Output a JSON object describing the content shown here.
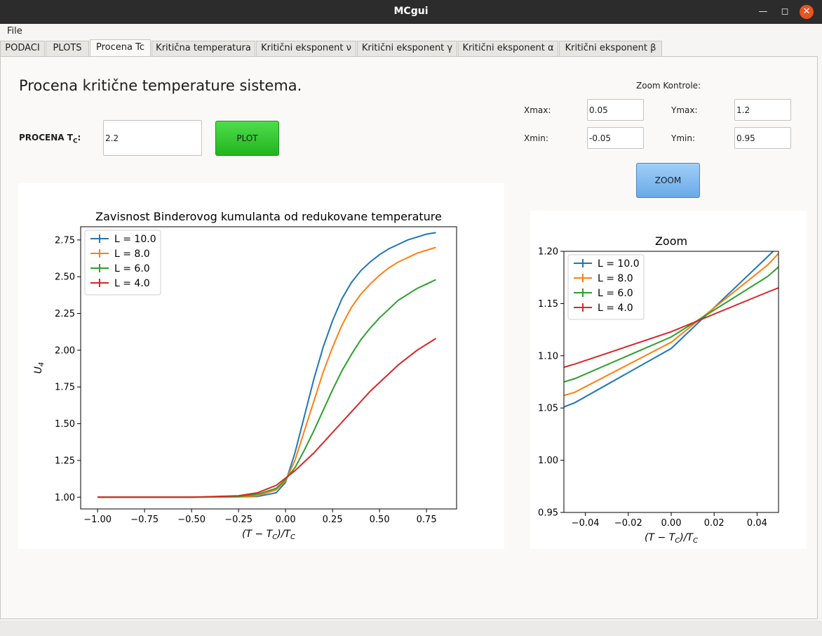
{
  "window": {
    "title": "MCgui"
  },
  "menu": {
    "file": "File"
  },
  "tabs": [
    {
      "label": "PODACI"
    },
    {
      "label": "PLOTS"
    },
    {
      "label": "Procena Tc"
    },
    {
      "label": "Kritična temperatura"
    },
    {
      "label": "Kritični eksponent ν"
    },
    {
      "label": "Kritični eksponent γ"
    },
    {
      "label": "Kritični eksponent α"
    },
    {
      "label": "Kritični eksponent  β"
    }
  ],
  "page": {
    "title": "Procena kritične temperature sistema.",
    "tc_label": "PROCENA T",
    "tc_sub": "C",
    "tc_suffix": ":",
    "tc_value": "2.2",
    "plot_button": "PLOT"
  },
  "zoom_controls": {
    "title": "Zoom Kontrole:",
    "xmax_label": "Xmax:",
    "xmax_value": "0.05",
    "xmin_label": "Xmin:",
    "xmin_value": "-0.05",
    "ymax_label": "Ymax:",
    "ymax_value": "1.2",
    "ymin_label": "Ymin:",
    "ymin_value": "0.95",
    "zoom_button": "ZOOM"
  },
  "colors": {
    "L10": "#1f77b4",
    "L8": "#ff7f0e",
    "L6": "#2ca02c",
    "L4": "#d62728",
    "plot_button": "#2ec82b",
    "zoom_button": "#7fbaf0",
    "titlebar": "#2c2c2c",
    "close_button": "#e95420"
  },
  "chart_data": [
    {
      "type": "line",
      "title": "Zavisnost Binderovog kumulanta od redukovane temperature",
      "xlabel": "(T − T_C)/T_C",
      "ylabel": "U_4",
      "xlim": [
        -1.09,
        0.91
      ],
      "ylim": [
        0.92,
        2.84
      ],
      "xticks": [
        -1.0,
        -0.75,
        -0.5,
        -0.25,
        0.0,
        0.25,
        0.5,
        0.75
      ],
      "xtick_labels": [
        "−1.00",
        "−0.75",
        "−0.50",
        "−0.25",
        "0.00",
        "0.25",
        "0.50",
        "0.75"
      ],
      "yticks": [
        1.0,
        1.25,
        1.5,
        1.75,
        2.0,
        2.25,
        2.5,
        2.75
      ],
      "ytick_labels": [
        "1.00",
        "1.25",
        "1.50",
        "1.75",
        "2.00",
        "2.25",
        "2.50",
        "2.75"
      ],
      "grid": false,
      "legend": "top-left",
      "series": [
        {
          "name": "L = 10.0",
          "color": "#1f77b4",
          "x": [
            -1.0,
            -0.5,
            -0.25,
            -0.15,
            -0.05,
            0.0,
            0.05,
            0.1,
            0.15,
            0.2,
            0.25,
            0.3,
            0.35,
            0.4,
            0.45,
            0.5,
            0.55,
            0.6,
            0.65,
            0.7,
            0.75,
            0.8
          ],
          "y": [
            1.0,
            1.0,
            1.002,
            1.005,
            1.03,
            1.1,
            1.3,
            1.55,
            1.8,
            2.02,
            2.2,
            2.35,
            2.46,
            2.54,
            2.6,
            2.65,
            2.69,
            2.72,
            2.75,
            2.77,
            2.79,
            2.8
          ]
        },
        {
          "name": "L = 8.0",
          "color": "#ff7f0e",
          "x": [
            -1.0,
            -0.5,
            -0.25,
            -0.15,
            -0.05,
            0.0,
            0.05,
            0.1,
            0.15,
            0.2,
            0.25,
            0.3,
            0.35,
            0.4,
            0.45,
            0.5,
            0.55,
            0.6,
            0.65,
            0.7,
            0.75,
            0.8
          ],
          "y": [
            1.0,
            1.0,
            1.003,
            1.01,
            1.05,
            1.11,
            1.25,
            1.45,
            1.65,
            1.85,
            2.02,
            2.17,
            2.29,
            2.38,
            2.45,
            2.51,
            2.56,
            2.6,
            2.63,
            2.66,
            2.68,
            2.7
          ]
        },
        {
          "name": "L = 6.0",
          "color": "#2ca02c",
          "x": [
            -1.0,
            -0.5,
            -0.25,
            -0.15,
            -0.05,
            0.0,
            0.05,
            0.1,
            0.15,
            0.2,
            0.25,
            0.3,
            0.35,
            0.4,
            0.45,
            0.5,
            0.55,
            0.6,
            0.65,
            0.7,
            0.75,
            0.8
          ],
          "y": [
            1.0,
            1.0,
            1.005,
            1.02,
            1.06,
            1.12,
            1.2,
            1.32,
            1.45,
            1.59,
            1.73,
            1.86,
            1.97,
            2.07,
            2.15,
            2.22,
            2.28,
            2.34,
            2.38,
            2.42,
            2.45,
            2.48
          ]
        },
        {
          "name": "L = 4.0",
          "color": "#d62728",
          "x": [
            -1.0,
            -0.5,
            -0.25,
            -0.15,
            -0.05,
            0.0,
            0.05,
            0.1,
            0.15,
            0.2,
            0.25,
            0.3,
            0.35,
            0.4,
            0.45,
            0.5,
            0.55,
            0.6,
            0.65,
            0.7,
            0.75,
            0.8
          ],
          "y": [
            1.0,
            1.0,
            1.01,
            1.03,
            1.08,
            1.13,
            1.18,
            1.24,
            1.3,
            1.37,
            1.44,
            1.51,
            1.58,
            1.65,
            1.72,
            1.78,
            1.84,
            1.9,
            1.95,
            2.0,
            2.04,
            2.08
          ]
        }
      ]
    },
    {
      "type": "line",
      "title": "Zoom",
      "xlabel": "(T − T_C)/T_C",
      "ylabel": "",
      "xlim": [
        -0.05,
        0.05
      ],
      "ylim": [
        0.95,
        1.2
      ],
      "xticks": [
        -0.04,
        -0.02,
        0.0,
        0.02,
        0.04
      ],
      "xtick_labels": [
        "−0.04",
        "−0.02",
        "0.00",
        "0.02",
        "0.04"
      ],
      "yticks": [
        0.95,
        1.0,
        1.05,
        1.1,
        1.15,
        1.2
      ],
      "ytick_labels": [
        "0.95",
        "1.00",
        "1.05",
        "1.10",
        "1.15",
        "1.20"
      ],
      "grid": false,
      "legend": "top-left",
      "series": [
        {
          "name": "L = 10.0",
          "color": "#1f77b4",
          "x": [
            -0.05,
            -0.045,
            0.0,
            0.045,
            0.05
          ],
          "y": [
            1.051,
            1.055,
            1.107,
            1.195,
            1.205
          ]
        },
        {
          "name": "L = 8.0",
          "color": "#ff7f0e",
          "x": [
            -0.05,
            -0.045,
            0.0,
            0.045,
            0.05
          ],
          "y": [
            1.062,
            1.065,
            1.113,
            1.187,
            1.198
          ]
        },
        {
          "name": "L = 6.0",
          "color": "#2ca02c",
          "x": [
            -0.05,
            -0.045,
            0.0,
            0.045,
            0.05
          ],
          "y": [
            1.075,
            1.078,
            1.118,
            1.176,
            1.185
          ]
        },
        {
          "name": "L = 4.0",
          "color": "#d62728",
          "x": [
            -0.05,
            -0.045,
            0.0,
            0.045,
            0.05
          ],
          "y": [
            1.089,
            1.092,
            1.123,
            1.161,
            1.165
          ]
        }
      ]
    }
  ]
}
